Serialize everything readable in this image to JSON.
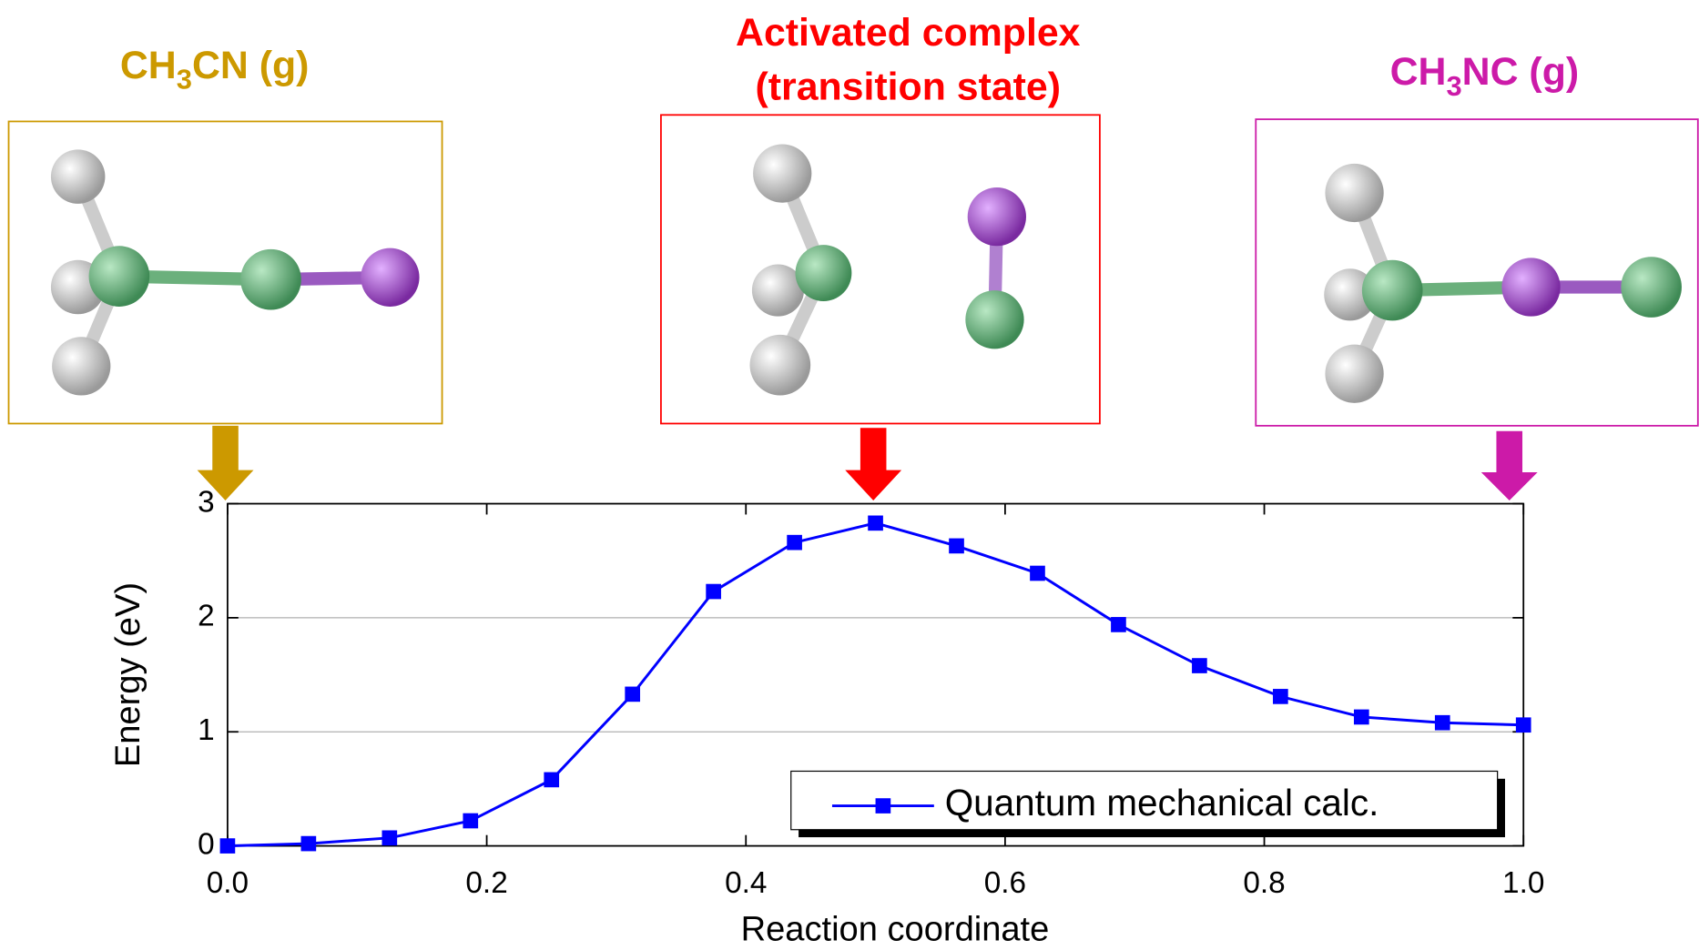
{
  "chart_data": {
    "type": "line",
    "reactant_label": [
      "CH",
      "3",
      "CN (g)"
    ],
    "transition_label": [
      "Activated complex",
      "(transition state)"
    ],
    "product_label": [
      "CH",
      "3",
      "NC (g)"
    ],
    "x_label": "Reaction coordinate",
    "y_label": "Energy  (eV)",
    "x": [
      0,
      0.0625,
      0.125,
      0.1875,
      0.25,
      0.3125,
      0.375,
      0.4375,
      0.5,
      0.5625,
      0.625,
      0.6875,
      0.75,
      0.8125,
      0.875,
      0.9375,
      1
    ],
    "series": [
      {
        "name": "Quantum mechanical calc.",
        "color": "#0000ff",
        "values": [
          0,
          0.02,
          0.07,
          0.22,
          0.58,
          1.33,
          2.23,
          2.66,
          2.83,
          2.63,
          2.39,
          1.94,
          1.58,
          1.31,
          1.13,
          1.08,
          1.06
        ]
      }
    ],
    "xlim": [
      0,
      1
    ],
    "ylim": [
      0,
      3
    ],
    "xticks": [
      {
        "value": 0,
        "label": "0.0"
      },
      0.2,
      0.4,
      0.6,
      0.8,
      {
        "value": 1,
        "label": "1.0"
      }
    ],
    "yticks": [
      0,
      1,
      2,
      3
    ],
    "grid": true
  }
}
